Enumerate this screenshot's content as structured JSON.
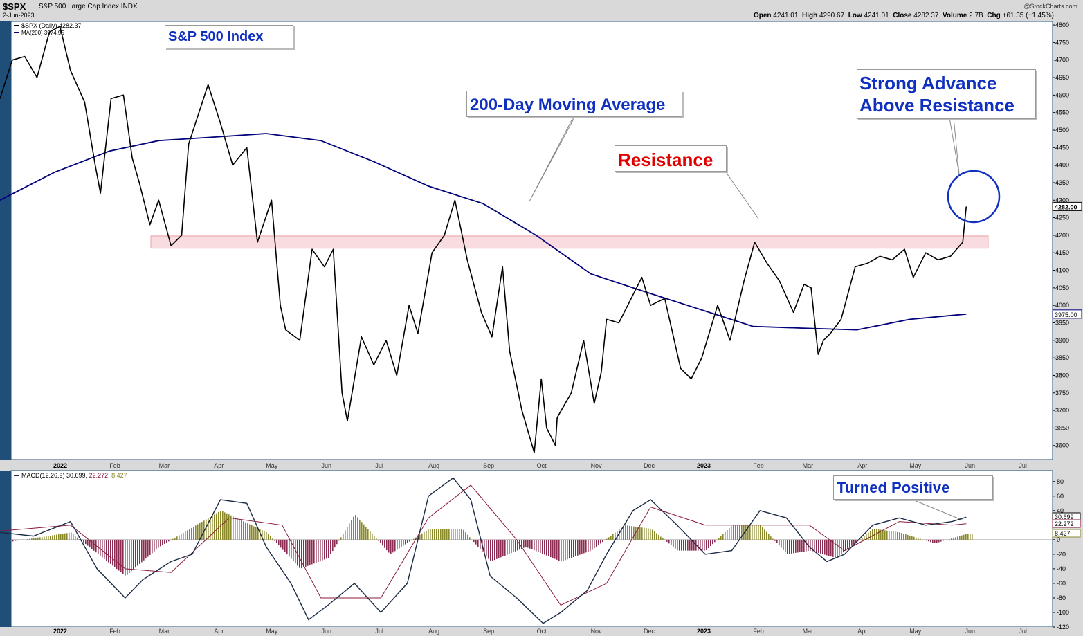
{
  "header": {
    "symbol": "$SPX",
    "name": "S&P 500 Large Cap Index",
    "exchange": "INDX",
    "date": "2-Jun-2023",
    "brand": "@StockCharts.com",
    "open_label": "Open",
    "open": "4241.01",
    "high_label": "High",
    "high": "4290.67",
    "low_label": "Low",
    "low": "4241.01",
    "close_label": "Close",
    "close": "4282.37",
    "volume_label": "Volume",
    "volume": "2.7B",
    "chg_label": "Chg",
    "chg": "+61.35 (+1.45%)"
  },
  "legend": {
    "price": "$SPX (Daily) 4282.37",
    "ma": "MA(200) 3974.95",
    "macd_name": "MACD(12,26,9)",
    "macd_value": "30.699",
    "signal_value": "22.272",
    "hist_value": "8.427"
  },
  "annotations": {
    "title": "S&P 500 Index",
    "ma_label": "200-Day Moving Average",
    "resistance": "Resistance",
    "advance_line1": "Strong Advance",
    "advance_line2": "Above Resistance",
    "macd_note": "Turned Positive"
  },
  "colors": {
    "price": "#000000",
    "ma": "#00007a",
    "resistance_fill": "#f5d0d4",
    "resistance_stroke": "#e8a0a8",
    "circle": "#1030c0",
    "annotation_blue": "#1030c0",
    "annotation_red": "#e00000",
    "hist_pos": "#8a8a2a",
    "hist_neg": "#8b2d52",
    "signal": "#8b1a3a",
    "macd": "#1a2a44"
  },
  "chart_data": [
    {
      "type": "line",
      "title": "$SPX S&P 500 Large Cap Index",
      "ylim": [
        3560,
        4810
      ],
      "y_ticks": [
        3600,
        3650,
        3700,
        3750,
        3800,
        3850,
        3900,
        3950,
        4000,
        4050,
        4100,
        4150,
        4200,
        4250,
        4300,
        4350,
        4400,
        4450,
        4500,
        4550,
        4600,
        4650,
        4700,
        4750,
        4800
      ],
      "x_ticks": [
        "2022",
        "Feb",
        "Mar",
        "Apr",
        "May",
        "Jun",
        "Jul",
        "Aug",
        "Sep",
        "Oct",
        "Nov",
        "Dec",
        "2023",
        "Feb",
        "Mar",
        "Apr",
        "May",
        "Jun",
        "Jul"
      ],
      "resistance_band": [
        4163,
        4198
      ],
      "series": [
        {
          "name": "$SPX (Daily)",
          "x": [
            "2021-12-01",
            "2021-12-08",
            "2021-12-15",
            "2021-12-22",
            "2021-12-29",
            "2022-01-04",
            "2022-01-10",
            "2022-01-18",
            "2022-01-24",
            "2022-01-27",
            "2022-02-02",
            "2022-02-09",
            "2022-02-14",
            "2022-02-18",
            "2022-02-24",
            "2022-03-01",
            "2022-03-08",
            "2022-03-14",
            "2022-03-18",
            "2022-03-29",
            "2022-04-05",
            "2022-04-12",
            "2022-04-20",
            "2022-04-26",
            "2022-05-04",
            "2022-05-09",
            "2022-05-12",
            "2022-05-20",
            "2022-05-27",
            "2022-06-03",
            "2022-06-08",
            "2022-06-13",
            "2022-06-16",
            "2022-06-24",
            "2022-07-01",
            "2022-07-08",
            "2022-07-14",
            "2022-07-21",
            "2022-07-26",
            "2022-08-03",
            "2022-08-10",
            "2022-08-16",
            "2022-08-23",
            "2022-08-31",
            "2022-09-06",
            "2022-09-12",
            "2022-09-16",
            "2022-09-23",
            "2022-09-30",
            "2022-10-04",
            "2022-10-07",
            "2022-10-12",
            "2022-10-13",
            "2022-10-21",
            "2022-10-28",
            "2022-11-03",
            "2022-11-07",
            "2022-11-10",
            "2022-11-17",
            "2022-11-30",
            "2022-12-05",
            "2022-12-13",
            "2022-12-22",
            "2022-12-28",
            "2023-01-03",
            "2023-01-12",
            "2023-01-19",
            "2023-01-27",
            "2023-02-02",
            "2023-02-09",
            "2023-02-16",
            "2023-02-24",
            "2023-03-02",
            "2023-03-06",
            "2023-03-10",
            "2023-03-13",
            "2023-03-17",
            "2023-03-23",
            "2023-03-31",
            "2023-04-07",
            "2023-04-14",
            "2023-04-21",
            "2023-04-28",
            "2023-05-03",
            "2023-05-10",
            "2023-05-17",
            "2023-05-24",
            "2023-05-31",
            "2023-06-02"
          ],
          "values": [
            4590,
            4700,
            4710,
            4650,
            4780,
            4796,
            4670,
            4580,
            4400,
            4320,
            4590,
            4600,
            4420,
            4350,
            4230,
            4300,
            4170,
            4200,
            4460,
            4630,
            4520,
            4400,
            4450,
            4180,
            4300,
            4000,
            3930,
            3900,
            4160,
            4110,
            4160,
            3750,
            3670,
            3910,
            3830,
            3900,
            3800,
            4000,
            3920,
            4150,
            4200,
            4300,
            4130,
            3980,
            3910,
            4110,
            3870,
            3700,
            3580,
            3790,
            3650,
            3600,
            3680,
            3750,
            3900,
            3720,
            3810,
            3960,
            3950,
            4080,
            4000,
            4020,
            3820,
            3790,
            3850,
            4000,
            3900,
            4070,
            4180,
            4120,
            4070,
            3980,
            4060,
            4050,
            3860,
            3900,
            3920,
            3960,
            4110,
            4120,
            4140,
            4130,
            4160,
            4080,
            4150,
            4130,
            4140,
            4180,
            4282
          ]
        },
        {
          "name": "MA(200)",
          "x": [
            "2021-12-01",
            "2022-01-01",
            "2022-02-01",
            "2022-03-01",
            "2022-04-01",
            "2022-05-01",
            "2022-06-01",
            "2022-07-01",
            "2022-08-01",
            "2022-09-01",
            "2022-10-01",
            "2022-11-01",
            "2022-12-01",
            "2023-01-01",
            "2023-02-01",
            "2023-03-01",
            "2023-04-01",
            "2023-05-01",
            "2023-06-02"
          ],
          "values": [
            4300,
            4380,
            4440,
            4470,
            4480,
            4490,
            4470,
            4410,
            4340,
            4290,
            4200,
            4090,
            4040,
            3990,
            3940,
            3935,
            3930,
            3960,
            3975
          ]
        }
      ]
    },
    {
      "type": "line",
      "title": "MACD(12,26,9)",
      "ylim": [
        -120,
        95
      ],
      "y_ticks": [
        -120,
        -100,
        -80,
        -60,
        -40,
        -20,
        0,
        20,
        40,
        60,
        80
      ],
      "series": [
        {
          "name": "MACD",
          "x": [
            "2021-12-01",
            "2021-12-20",
            "2022-01-10",
            "2022-01-25",
            "2022-02-10",
            "2022-02-20",
            "2022-03-08",
            "2022-03-20",
            "2022-04-05",
            "2022-04-20",
            "2022-05-01",
            "2022-05-15",
            "2022-05-25",
            "2022-06-05",
            "2022-06-20",
            "2022-07-05",
            "2022-07-20",
            "2022-08-01",
            "2022-08-15",
            "2022-08-25",
            "2022-09-05",
            "2022-09-20",
            "2022-10-05",
            "2022-10-15",
            "2022-10-30",
            "2022-11-10",
            "2022-11-25",
            "2022-12-05",
            "2022-12-20",
            "2023-01-05",
            "2023-01-20",
            "2023-02-05",
            "2023-02-20",
            "2023-03-05",
            "2023-03-15",
            "2023-03-25",
            "2023-04-10",
            "2023-04-25",
            "2023-05-10",
            "2023-05-25",
            "2023-06-02"
          ],
          "values": [
            10,
            5,
            25,
            -40,
            -80,
            -55,
            -30,
            -20,
            55,
            50,
            -10,
            -60,
            -110,
            -90,
            -60,
            -100,
            -60,
            60,
            85,
            55,
            -50,
            -80,
            -115,
            -100,
            -70,
            -20,
            40,
            55,
            20,
            -20,
            -15,
            40,
            30,
            -10,
            -30,
            -20,
            20,
            30,
            20,
            25,
            31
          ]
        },
        {
          "name": "Signal",
          "x": [
            "2021-12-01",
            "2022-01-10",
            "2022-02-10",
            "2022-03-08",
            "2022-04-10",
            "2022-05-10",
            "2022-06-01",
            "2022-07-05",
            "2022-08-01",
            "2022-08-25",
            "2022-09-20",
            "2022-10-15",
            "2022-11-10",
            "2022-12-05",
            "2023-01-05",
            "2023-02-05",
            "2023-03-05",
            "2023-03-25",
            "2023-04-25",
            "2023-05-25",
            "2023-06-02"
          ],
          "values": [
            12,
            20,
            -40,
            -45,
            30,
            20,
            -80,
            -80,
            30,
            75,
            0,
            -90,
            -60,
            45,
            20,
            20,
            20,
            -15,
            25,
            20,
            22
          ]
        }
      ],
      "histogram": {
        "x": [
          "2021-12-01",
          "2022-01-10",
          "2022-02-10",
          "2022-03-01",
          "2022-04-05",
          "2022-05-01",
          "2022-05-20",
          "2022-06-05",
          "2022-06-20",
          "2022-07-10",
          "2022-08-01",
          "2022-08-20",
          "2022-09-05",
          "2022-09-25",
          "2022-10-15",
          "2022-11-01",
          "2022-11-20",
          "2022-12-05",
          "2022-12-20",
          "2023-01-05",
          "2023-01-20",
          "2023-02-05",
          "2023-02-20",
          "2023-03-05",
          "2023-03-20",
          "2023-04-10",
          "2023-04-25",
          "2023-05-15",
          "2023-06-02"
        ],
        "values": [
          -5,
          10,
          -50,
          -10,
          40,
          10,
          -40,
          -25,
          35,
          -20,
          15,
          15,
          -30,
          -10,
          -30,
          -15,
          20,
          15,
          -15,
          -15,
          20,
          20,
          -20,
          -15,
          -25,
          15,
          10,
          -5,
          8
        ]
      }
    }
  ]
}
